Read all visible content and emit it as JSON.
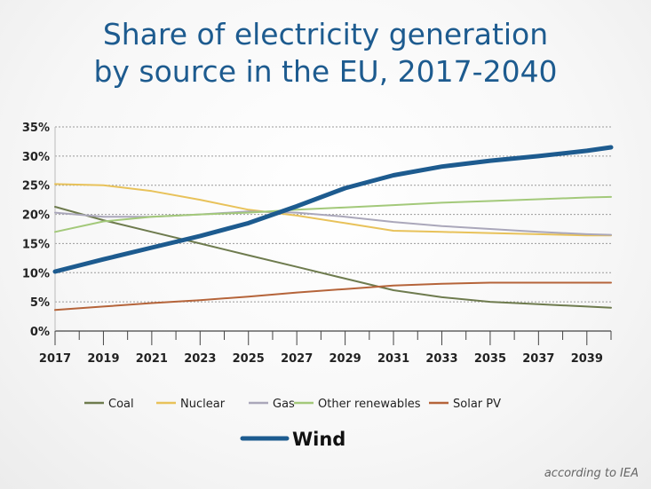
{
  "title_line1": "Share of electricity generation",
  "title_line2": "by source in the EU, 2017-2040",
  "footnote": "according to IEA",
  "chart_data": {
    "type": "line",
    "title": "Share of electricity generation by source in the EU, 2017-2040",
    "xlabel": "",
    "ylabel": "",
    "xlim": [
      2017,
      2040
    ],
    "ylim": [
      0,
      35
    ],
    "x_ticks": [
      "2017",
      "2019",
      "2021",
      "2023",
      "2025",
      "2027",
      "2029",
      "2031",
      "2033",
      "2035",
      "2037",
      "2039"
    ],
    "y_ticks": [
      "0%",
      "5%",
      "10%",
      "15%",
      "20%",
      "25%",
      "30%",
      "35%"
    ],
    "grid": "horizontal dotted",
    "legend_position": "bottom",
    "series": [
      {
        "name": "Coal",
        "color": "#6e7b4e",
        "width": 2,
        "points": [
          [
            2017,
            21.3
          ],
          [
            2019,
            19.0
          ],
          [
            2021,
            17.0
          ],
          [
            2023,
            15.0
          ],
          [
            2025,
            13.0
          ],
          [
            2027,
            11.0
          ],
          [
            2029,
            9.0
          ],
          [
            2031,
            7.0
          ],
          [
            2033,
            5.8
          ],
          [
            2035,
            5.0
          ],
          [
            2037,
            4.6
          ],
          [
            2039,
            4.2
          ],
          [
            2040,
            4.0
          ]
        ]
      },
      {
        "name": "Nuclear",
        "color": "#e8c25a",
        "width": 2,
        "points": [
          [
            2017,
            25.2
          ],
          [
            2019,
            25.0
          ],
          [
            2021,
            24.0
          ],
          [
            2023,
            22.5
          ],
          [
            2025,
            20.8
          ],
          [
            2027,
            19.8
          ],
          [
            2029,
            18.5
          ],
          [
            2031,
            17.2
          ],
          [
            2033,
            17.0
          ],
          [
            2035,
            16.8
          ],
          [
            2037,
            16.6
          ],
          [
            2039,
            16.4
          ],
          [
            2040,
            16.4
          ]
        ]
      },
      {
        "name": "Gas",
        "color": "#aaa7ba",
        "width": 2,
        "points": [
          [
            2017,
            20.3
          ],
          [
            2019,
            19.6
          ],
          [
            2021,
            19.6
          ],
          [
            2023,
            20.0
          ],
          [
            2025,
            20.5
          ],
          [
            2027,
            20.3
          ],
          [
            2029,
            19.6
          ],
          [
            2031,
            18.7
          ],
          [
            2033,
            18.0
          ],
          [
            2035,
            17.5
          ],
          [
            2037,
            17.0
          ],
          [
            2039,
            16.6
          ],
          [
            2040,
            16.5
          ]
        ]
      },
      {
        "name": "Other renewables",
        "color": "#a3c97a",
        "width": 2,
        "points": [
          [
            2017,
            17.0
          ],
          [
            2019,
            18.8
          ],
          [
            2021,
            19.6
          ],
          [
            2023,
            20.0
          ],
          [
            2025,
            20.3
          ],
          [
            2027,
            20.8
          ],
          [
            2029,
            21.2
          ],
          [
            2031,
            21.6
          ],
          [
            2033,
            22.0
          ],
          [
            2035,
            22.3
          ],
          [
            2037,
            22.6
          ],
          [
            2039,
            22.9
          ],
          [
            2040,
            23.0
          ]
        ]
      },
      {
        "name": "Solar PV",
        "color": "#b5643a",
        "width": 2,
        "points": [
          [
            2017,
            3.6
          ],
          [
            2019,
            4.2
          ],
          [
            2021,
            4.8
          ],
          [
            2023,
            5.3
          ],
          [
            2025,
            5.9
          ],
          [
            2027,
            6.6
          ],
          [
            2029,
            7.2
          ],
          [
            2031,
            7.8
          ],
          [
            2033,
            8.1
          ],
          [
            2035,
            8.3
          ],
          [
            2037,
            8.3
          ],
          [
            2039,
            8.3
          ],
          [
            2040,
            8.3
          ]
        ]
      },
      {
        "name": "Wind",
        "color": "#1d5b8f",
        "width": 5,
        "points": [
          [
            2017,
            10.2
          ],
          [
            2019,
            12.3
          ],
          [
            2021,
            14.3
          ],
          [
            2023,
            16.3
          ],
          [
            2025,
            18.5
          ],
          [
            2027,
            21.4
          ],
          [
            2029,
            24.5
          ],
          [
            2031,
            26.7
          ],
          [
            2033,
            28.2
          ],
          [
            2035,
            29.2
          ],
          [
            2037,
            30.0
          ],
          [
            2039,
            30.9
          ],
          [
            2040,
            31.5
          ]
        ]
      }
    ]
  }
}
